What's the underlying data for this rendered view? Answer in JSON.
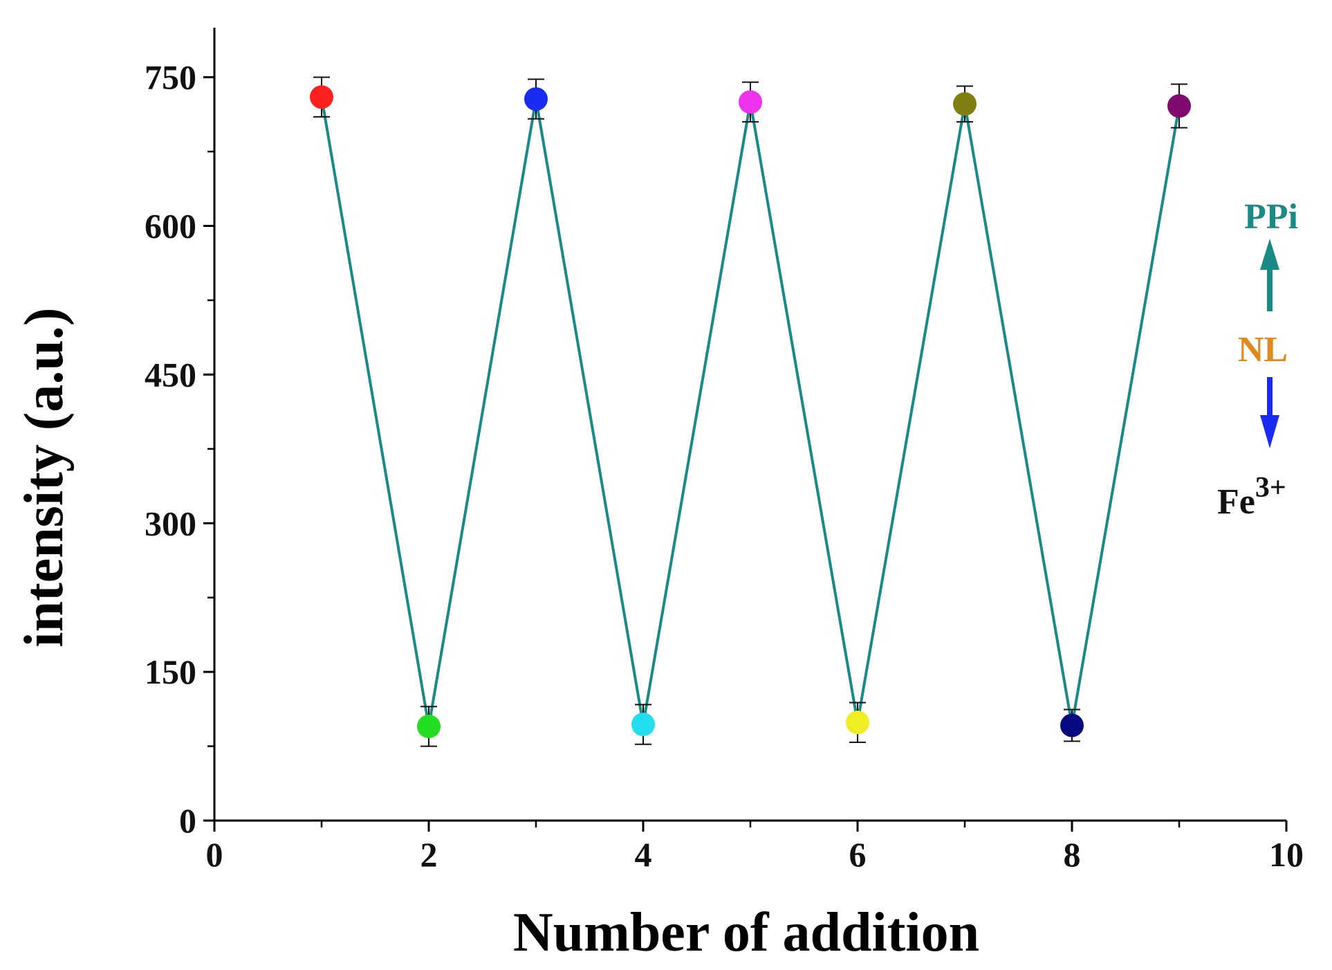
{
  "chart_data": {
    "type": "line",
    "xlabel": "Number of addition",
    "ylabel": "intensity (a.u.)",
    "xlim": [
      0,
      10
    ],
    "ylim": [
      0,
      800
    ],
    "x_ticks": [
      0,
      2,
      4,
      6,
      8,
      10
    ],
    "x_tick_labels": [
      "0",
      "2",
      "4",
      "6",
      "8",
      "10"
    ],
    "y_ticks": [
      0,
      150,
      300,
      450,
      600,
      750
    ],
    "y_tick_labels": [
      "0",
      "150",
      "300",
      "450",
      "600",
      "750"
    ],
    "grid": false,
    "line_color": "#1a8a86",
    "series": [
      {
        "x": [
          1,
          2,
          3,
          4,
          5,
          6,
          7,
          8,
          9
        ],
        "y": [
          730,
          95,
          728,
          97,
          725,
          99,
          723,
          96,
          721
        ],
        "error": [
          20,
          20,
          20,
          20,
          20,
          20,
          18,
          16,
          22
        ],
        "marker_colors": [
          "#ff2020",
          "#22dd22",
          "#1a2cf0",
          "#22ddee",
          "#ee33ee",
          "#eeee22",
          "#808010",
          "#0a0a80",
          "#800a70"
        ]
      }
    ],
    "annotations": {
      "ppi": {
        "text": "PPi",
        "color": "#1a8a86"
      },
      "nl": {
        "text": "NL",
        "color": "#e08a1e"
      },
      "fe": {
        "text": "Fe",
        "sup": "3+",
        "color": "#111111"
      },
      "arrow_up_color": "#1a8a86",
      "arrow_down_color": "#1a2cf0"
    }
  }
}
